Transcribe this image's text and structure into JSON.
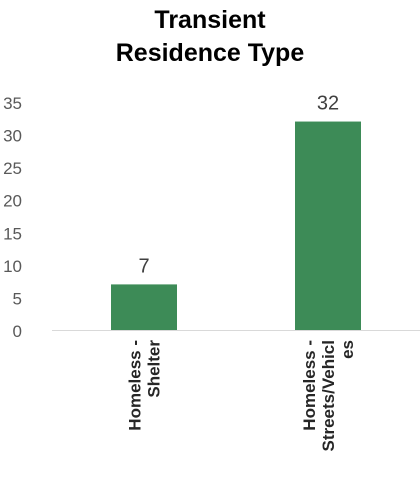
{
  "chart_data": {
    "type": "bar",
    "title_lines": [
      "Transient",
      "Residence Type"
    ],
    "categories": [
      [
        "Homeless -",
        "Shelter"
      ],
      [
        "Homeless -",
        "Streets/Vehicl",
        "es"
      ]
    ],
    "values": [
      7,
      32
    ],
    "data_labels": [
      "7",
      "32"
    ],
    "ylim": [
      0,
      35
    ],
    "yticks": [
      0,
      5,
      10,
      15,
      20,
      25,
      30,
      35
    ],
    "bar_color": "#3d8b57",
    "grid": false,
    "legend": "none"
  }
}
